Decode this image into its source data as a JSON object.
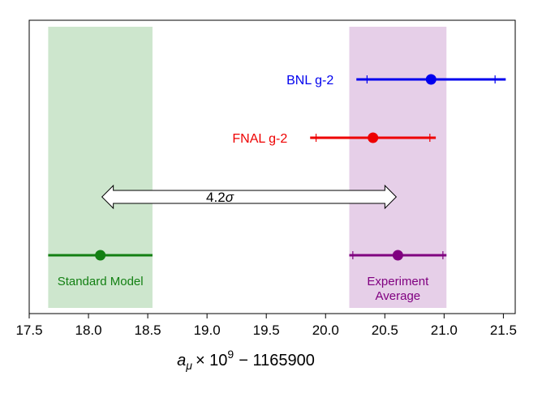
{
  "chart_data": {
    "type": "scatter",
    "title": "",
    "xlabel": {
      "symbol": "a",
      "subscript": "μ",
      "times": "× 10",
      "exponent": "9",
      "offset": "− 1165900"
    },
    "ylabel": "",
    "xlim": [
      17.5,
      21.6
    ],
    "x_ticks": [
      17.5,
      18.0,
      18.5,
      19.0,
      19.5,
      20.0,
      20.5,
      21.0,
      21.5
    ],
    "x_tick_labels": [
      "17.5",
      "18.0",
      "18.5",
      "19.0",
      "19.5",
      "20.0",
      "20.5",
      "21.0",
      "21.5"
    ],
    "grid": false,
    "bands": [
      {
        "id": "standard-model-band",
        "x_min": 17.66,
        "x_max": 18.54,
        "color": "#cde6cd"
      },
      {
        "id": "experiment-band",
        "x_min": 20.2,
        "x_max": 21.02,
        "color": "#e6cfe8"
      }
    ],
    "series": [
      {
        "id": "bnl",
        "name": "BNL g-2",
        "label_lines": [
          "BNL g-2"
        ],
        "row": 1,
        "color": "#0000ee",
        "value": 20.89,
        "total_error": [
          20.26,
          21.52
        ],
        "stat_error": [
          20.35,
          21.43
        ],
        "label_side": "left"
      },
      {
        "id": "fnal",
        "name": "FNAL g-2",
        "label_lines": [
          "FNAL g-2"
        ],
        "row": 2,
        "color": "#ee0000",
        "value": 20.4,
        "total_error": [
          19.87,
          20.93
        ],
        "stat_error": [
          19.92,
          20.88
        ],
        "label_side": "left"
      },
      {
        "id": "standard-model",
        "name": "Standard Model",
        "label_lines": [
          "Standard Model"
        ],
        "row": 4,
        "color": "#138013",
        "value": 18.1,
        "total_error": [
          17.66,
          18.54
        ],
        "stat_error": null,
        "label_side": "below"
      },
      {
        "id": "experiment-average",
        "name": "Experiment Average",
        "label_lines": [
          "Experiment",
          "Average"
        ],
        "row": 4,
        "color": "#800080",
        "value": 20.61,
        "total_error": [
          20.2,
          21.02
        ],
        "stat_error": [
          20.23,
          20.99
        ],
        "label_side": "below"
      }
    ],
    "annotations": [
      {
        "type": "double-arrow",
        "label_value": "4.2",
        "label_unit": "σ",
        "x_from": 18.1,
        "x_to": 20.61,
        "row": 3
      }
    ]
  }
}
